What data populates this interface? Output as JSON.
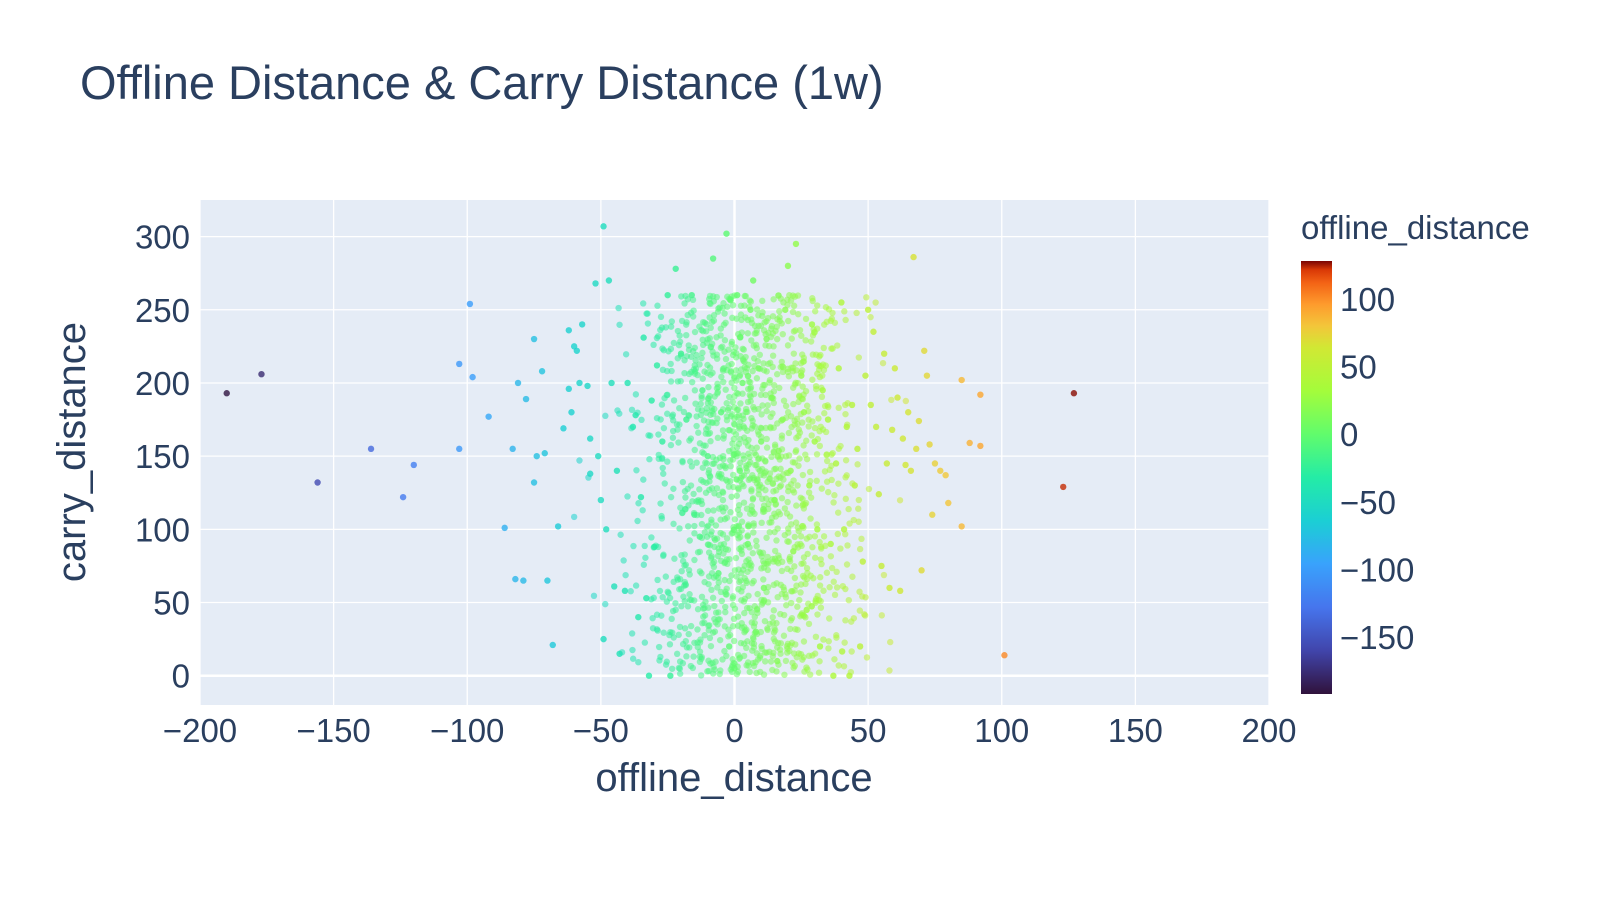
{
  "chart_data": {
    "type": "scatter",
    "title": "Offline Distance & Carry Distance (1w)",
    "xlabel": "offline_distance",
    "ylabel": "carry_distance",
    "xlim": [
      -200,
      200
    ],
    "ylim": [
      -20,
      325
    ],
    "xticks": [
      -200,
      -150,
      -100,
      -50,
      0,
      50,
      100,
      150,
      200
    ],
    "xtick_labels": [
      "−200",
      "−150",
      "−100",
      "−50",
      "0",
      "50",
      "100",
      "150",
      "200"
    ],
    "yticks": [
      0,
      50,
      100,
      150,
      200,
      250,
      300
    ],
    "ytick_labels": [
      "0",
      "50",
      "100",
      "150",
      "200",
      "250",
      "300"
    ],
    "grid": true,
    "plot_background": "#e5ecf6",
    "marker_opacity": 0.55,
    "colorbar": {
      "title": "offline_distance",
      "range": [
        -192,
        128
      ],
      "ticks": [
        100,
        50,
        0,
        -50,
        -100,
        -150
      ],
      "tick_labels": [
        "100",
        "50",
        "0",
        "−50",
        "−100",
        "−150"
      ],
      "colorscale": "Turbo"
    },
    "points": [
      [
        -190,
        193
      ],
      [
        -177,
        206
      ],
      [
        -156,
        132
      ],
      [
        -136,
        155
      ],
      [
        -124,
        122
      ],
      [
        -120,
        144
      ],
      [
        -103,
        213
      ],
      [
        -103,
        155
      ],
      [
        -99,
        254
      ],
      [
        -98,
        204
      ],
      [
        -92,
        177
      ],
      [
        -86,
        101
      ],
      [
        -83,
        155
      ],
      [
        -82,
        66
      ],
      [
        -81,
        200
      ],
      [
        -79,
        65
      ],
      [
        -78,
        189
      ],
      [
        -75,
        230
      ],
      [
        -75,
        132
      ],
      [
        -74,
        150
      ],
      [
        -72,
        208
      ],
      [
        -71,
        152
      ],
      [
        -70,
        65
      ],
      [
        -68,
        21
      ],
      [
        -66,
        102
      ],
      [
        -64,
        169
      ],
      [
        -62,
        236
      ],
      [
        -62,
        196
      ],
      [
        -61,
        180
      ],
      [
        -60,
        225
      ],
      [
        -59,
        222
      ],
      [
        -58,
        200
      ],
      [
        -57,
        240
      ],
      [
        -55,
        198
      ],
      [
        -54,
        162
      ],
      [
        -54,
        138
      ],
      [
        -52,
        268
      ],
      [
        -51,
        150
      ],
      [
        -50,
        120
      ],
      [
        -49,
        307
      ],
      [
        -49,
        25
      ],
      [
        -48,
        100
      ],
      [
        -47,
        270
      ],
      [
        -46,
        200
      ],
      [
        -45,
        61
      ],
      [
        -44,
        140
      ],
      [
        -43,
        15
      ],
      [
        -41,
        58
      ],
      [
        -40,
        200
      ],
      [
        -38,
        170
      ],
      [
        -37,
        178
      ],
      [
        -36,
        40
      ],
      [
        -35,
        122
      ],
      [
        -34,
        231
      ],
      [
        -33,
        53
      ],
      [
        -32,
        0
      ],
      [
        -31,
        188
      ],
      [
        -30,
        88
      ],
      [
        -29,
        212
      ],
      [
        -27,
        160
      ],
      [
        -25,
        260
      ],
      [
        -24,
        0
      ],
      [
        -22,
        278
      ],
      [
        -20,
        220
      ],
      [
        -18,
        175
      ],
      [
        -16,
        260
      ],
      [
        -15,
        110
      ],
      [
        -13,
        95
      ],
      [
        -12,
        195
      ],
      [
        -10,
        150
      ],
      [
        -8,
        285
      ],
      [
        -6,
        70
      ],
      [
        -5,
        180
      ],
      [
        -3,
        302
      ],
      [
        -2,
        20
      ],
      [
        0,
        5
      ],
      [
        1,
        260
      ],
      [
        2,
        140
      ],
      [
        3,
        200
      ],
      [
        5,
        90
      ],
      [
        6,
        250
      ],
      [
        7,
        270
      ],
      [
        8,
        30
      ],
      [
        9,
        210
      ],
      [
        10,
        160
      ],
      [
        11,
        60
      ],
      [
        12,
        230
      ],
      [
        14,
        190
      ],
      [
        15,
        120
      ],
      [
        16,
        10
      ],
      [
        18,
        175
      ],
      [
        19,
        250
      ],
      [
        20,
        280
      ],
      [
        21,
        140
      ],
      [
        22,
        85
      ],
      [
        23,
        295
      ],
      [
        25,
        205
      ],
      [
        26,
        180
      ],
      [
        27,
        45
      ],
      [
        28,
        130
      ],
      [
        29,
        240
      ],
      [
        30,
        160
      ],
      [
        31,
        100
      ],
      [
        32,
        20
      ],
      [
        33,
        195
      ],
      [
        35,
        175
      ],
      [
        36,
        90
      ],
      [
        37,
        0
      ],
      [
        38,
        145
      ],
      [
        39,
        210
      ],
      [
        40,
        255
      ],
      [
        41,
        100
      ],
      [
        42,
        170
      ],
      [
        43,
        0
      ],
      [
        44,
        185
      ],
      [
        45,
        130
      ],
      [
        46,
        155
      ],
      [
        47,
        20
      ],
      [
        48,
        78
      ],
      [
        49,
        205
      ],
      [
        50,
        250
      ],
      [
        51,
        185
      ],
      [
        52,
        235
      ],
      [
        53,
        170
      ],
      [
        54,
        124
      ],
      [
        55,
        75
      ],
      [
        56,
        220
      ],
      [
        57,
        145
      ],
      [
        58,
        60
      ],
      [
        59,
        168
      ],
      [
        60,
        210
      ],
      [
        61,
        190
      ],
      [
        62,
        58
      ],
      [
        63,
        162
      ],
      [
        64,
        144
      ],
      [
        65,
        180
      ],
      [
        66,
        140
      ],
      [
        67,
        286
      ],
      [
        68,
        155
      ],
      [
        69,
        174
      ],
      [
        70,
        72
      ],
      [
        71,
        222
      ],
      [
        72,
        205
      ],
      [
        73,
        158
      ],
      [
        74,
        110
      ],
      [
        75,
        145
      ],
      [
        77,
        140
      ],
      [
        79,
        137
      ],
      [
        80,
        118
      ],
      [
        85,
        202
      ],
      [
        85,
        102
      ],
      [
        88,
        159
      ],
      [
        92,
        157
      ],
      [
        92,
        192
      ],
      [
        101,
        14
      ],
      [
        123,
        129
      ],
      [
        127,
        193
      ]
    ],
    "cloud": {
      "count": 1500,
      "x_mean": 4,
      "x_sd": 20,
      "y_min": 0,
      "y_max": 260
    }
  }
}
